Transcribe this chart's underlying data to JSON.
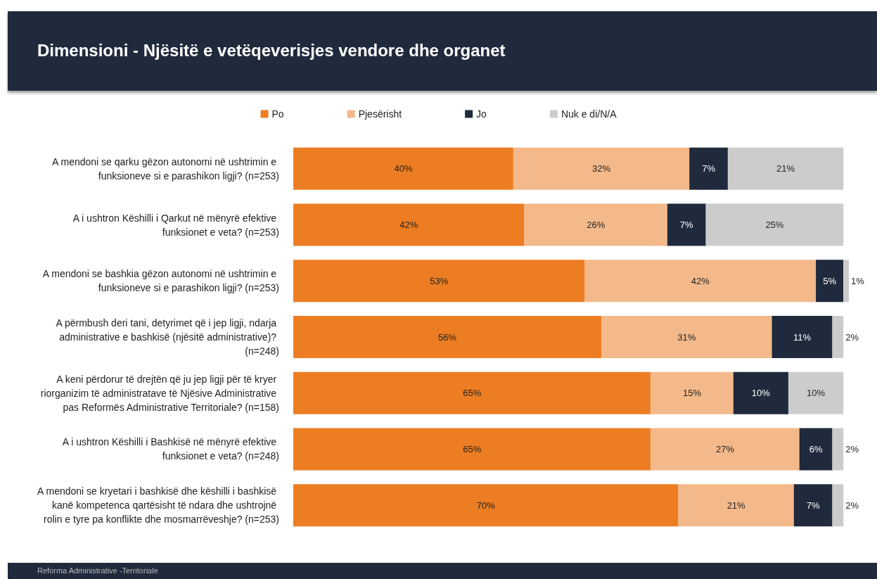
{
  "chart_data": {
    "type": "bar",
    "orientation": "horizontal",
    "stacked": true,
    "title": "Dimensioni - Njësitë e vetëqeverisjes vendore dhe organet",
    "categories": [
      "A mendoni se qarku gëzon autonomi në ushtrimin e funksioneve si e parashikon ligji? (n=253)",
      "A i ushtron Këshilli i Qarkut në mënyrë efektive funksionet e veta? (n=253)",
      "A mendoni se bashkia gëzon autonomi në ushtrimin e funksioneve si e parashikon ligji? (n=253)",
      "A përmbush deri tani, detyrimet që i jep ligji, ndarja administrative e bashkisë (njësitë administrative)? (n=248)",
      "A keni përdorur të drejtën që ju jep ligji për të kryer riorganizim të administratave të Njësive Administrative pas Reformës Administrative Territoriale? (n=158)",
      "A i ushtron Këshilli i Bashkisë në mënyrë efektive funksionet e veta? (n=248)",
      "A mendoni se kryetari i bashkisë dhe këshilli i bashkisë kanë kompetenca qartësisht të ndara dhe ushtrojnë rolin e tyre pa konflikte dhe mosmarrëveshje? (n=253)"
    ],
    "series": [
      {
        "name": "Po",
        "color": "#ed7d22",
        "values": [
          40,
          42,
          53,
          56,
          65,
          65,
          70
        ],
        "value_labels": [
          "40%",
          "42%",
          "53%",
          "56%",
          "65%",
          "65%",
          "70%"
        ]
      },
      {
        "name": "Pjesërisht",
        "color": "#f4b98a",
        "values": [
          32,
          26,
          42,
          31,
          15,
          27,
          21
        ],
        "value_labels": [
          "32%",
          "26%",
          "42%",
          "31%",
          "15%",
          "27%",
          "21%"
        ]
      },
      {
        "name": "Jo",
        "color": "#1f2a3c",
        "values": [
          7,
          7,
          5,
          11,
          10,
          6,
          7
        ],
        "value_labels": [
          "7%",
          "7%",
          "5%",
          "11%",
          "10%",
          "6%",
          "7%"
        ]
      },
      {
        "name": "Nuk e di/N/A",
        "color": "#cccccc",
        "values": [
          21,
          25,
          1,
          2,
          10,
          2,
          2
        ],
        "value_labels": [
          "21%",
          "25%",
          "1%",
          "2%",
          "10%",
          "2%",
          "2%"
        ]
      }
    ],
    "legend": "top",
    "tick_labels": "y",
    "annotations": [
      "Reforma Administrative -Territoriale"
    ]
  }
}
